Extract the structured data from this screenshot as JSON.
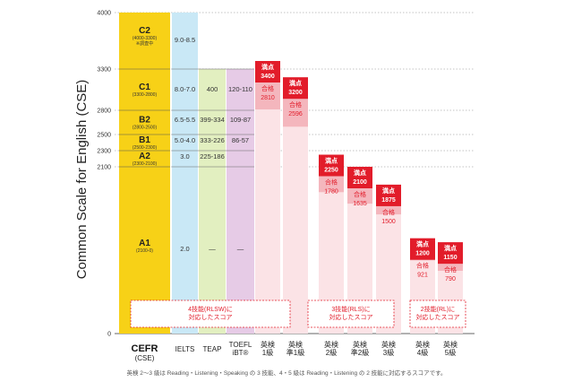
{
  "chart_data": {
    "type": "bar",
    "title": "",
    "ylabel": "Common Scale for English (CSE)",
    "ylim": [
      0,
      4000
    ],
    "y_ticks": [
      "4000",
      "3300",
      "2800",
      "2500",
      "2300",
      "2100",
      "0"
    ],
    "x_labels": {
      "cefr": {
        "main": "CEFR",
        "sub": "(CSE)"
      },
      "ielts": "IELTS",
      "teap": "TEAP",
      "toefl": [
        "TOEFL",
        "iBT®"
      ],
      "eiken": [
        [
          "英検",
          "1級"
        ],
        [
          "英検",
          "準1級"
        ],
        [
          "英検",
          "2級"
        ],
        [
          "英検",
          "準2級"
        ],
        [
          "英検",
          "3級"
        ],
        [
          "英検",
          "4級"
        ],
        [
          "英検",
          "5級"
        ]
      ]
    },
    "cefr_levels": [
      {
        "label": "C2",
        "sub": "(4000-3300)",
        "note": "※調査中",
        "low": 3300,
        "high": 4000
      },
      {
        "label": "C1",
        "sub": "(3300-2800)",
        "low": 2800,
        "high": 3300
      },
      {
        "label": "B2",
        "sub": "(2800-2500)",
        "low": 2500,
        "high": 2800
      },
      {
        "label": "B1",
        "sub": "(2500-2300)",
        "low": 2300,
        "high": 2500
      },
      {
        "label": "A2",
        "sub": "(2300-2100)",
        "low": 2100,
        "high": 2300
      },
      {
        "label": "A1",
        "sub": "(2100-0)",
        "low": 0,
        "high": 2100
      }
    ],
    "ielts": [
      "9.0-8.5",
      "8.0-7.0",
      "6.5-5.5",
      "5.0-4.0",
      "3.0",
      "2.0"
    ],
    "teap": [
      "",
      "400",
      "399-334",
      "333-226",
      "225-186",
      "—"
    ],
    "toefl": [
      "",
      "120-110",
      "109-87",
      "86-57",
      "",
      "—"
    ],
    "eiken": [
      {
        "name": "1級",
        "perfect_label": "満点",
        "perfect": 3400,
        "pass_label": "合格",
        "pass": 2810
      },
      {
        "name": "準1級",
        "perfect_label": "満点",
        "perfect": 3200,
        "pass_label": "合格",
        "pass": 2596
      },
      {
        "name": "2級",
        "perfect_label": "満点",
        "perfect": 2250,
        "pass_label": "合格",
        "pass": 1780
      },
      {
        "name": "準2級",
        "perfect_label": "満点",
        "perfect": 2100,
        "pass_label": "合格",
        "pass": 1635
      },
      {
        "name": "3級",
        "perfect_label": "満点",
        "perfect": 1875,
        "pass_label": "合格",
        "pass": 1500
      },
      {
        "name": "4級",
        "perfect_label": "満点",
        "perfect": 1200,
        "pass_label": "合格",
        "pass": 921
      },
      {
        "name": "5級",
        "perfect_label": "満点",
        "perfect": 1150,
        "pass_label": "合格",
        "pass": 790
      }
    ],
    "annotations": [
      [
        "4技能(RLSW)に",
        "対応したスコア"
      ],
      [
        "3技能(RLS)に",
        "対応したスコア"
      ],
      [
        "2技能(RL)に",
        "対応したスコア"
      ]
    ],
    "footnote": "英検 2～3 級は Reading・Listening・Speaking の 3 技能、4・5 級は Reading・Listening の 2 技能に対応するスコアです。"
  },
  "colors": {
    "cefr": "#f7d117",
    "ielts": "#c9e8f6",
    "teap": "#e2efc0",
    "toefl": "#e6cbe6",
    "red": "#e21c2a",
    "pink": "#f4b6bd",
    "pink_light": "#fbe3e6"
  }
}
